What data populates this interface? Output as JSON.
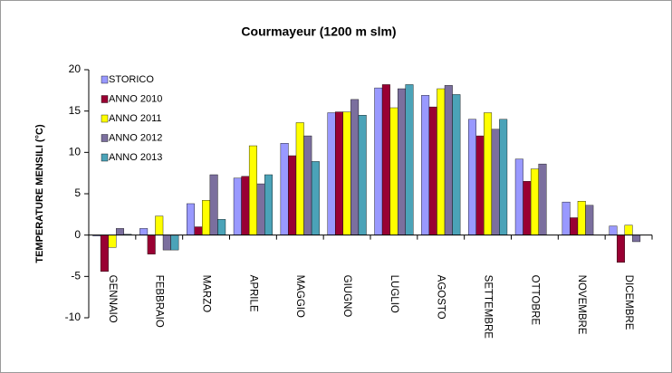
{
  "chart_data": {
    "type": "bar",
    "title": "Courmayeur (1200 m slm)",
    "y_label": "TEMPERATURE MENSILI (°C)",
    "categories": [
      "GENNAIO",
      "FEBBRAIO",
      "MARZO",
      "APRILE",
      "MAGGIO",
      "GIUGNO",
      "LUGLIO",
      "AGOSTO",
      "SETTEMBRE",
      "OTTOBRE",
      "NOVEMBRE",
      "DICEMBRE"
    ],
    "series": [
      {
        "name": "STORICO",
        "color": "#9999ff",
        "values": [
          -0.1,
          0.8,
          3.8,
          6.9,
          11.1,
          14.8,
          17.8,
          16.9,
          14.0,
          9.2,
          4.0,
          1.1
        ]
      },
      {
        "name": "ANNO 2010",
        "color": "#990033",
        "values": [
          -4.4,
          -2.3,
          1.0,
          7.1,
          9.6,
          14.9,
          18.2,
          15.5,
          12.0,
          6.5,
          2.1,
          -3.3
        ]
      },
      {
        "name": "ANNO 2011",
        "color": "#ffff00",
        "values": [
          -1.5,
          2.3,
          4.2,
          10.8,
          13.6,
          14.9,
          15.4,
          17.7,
          14.8,
          8.0,
          4.1,
          1.2
        ]
      },
      {
        "name": "ANNO 2012",
        "color": "#7b6f9e",
        "values": [
          0.8,
          -1.8,
          7.3,
          6.2,
          12.0,
          16.4,
          17.7,
          18.1,
          12.8,
          8.6,
          3.6,
          -0.8
        ]
      },
      {
        "name": "ANNO 2013",
        "color": "#4ba3b8",
        "values": [
          0.1,
          -1.8,
          1.9,
          7.3,
          8.9,
          14.5,
          18.2,
          17.0,
          14.0,
          null,
          null,
          null
        ]
      }
    ],
    "ylim": [
      -10,
      20
    ],
    "yticks": [
      -10,
      -5,
      0,
      5,
      10,
      15,
      20
    ],
    "legend": "top-left"
  }
}
